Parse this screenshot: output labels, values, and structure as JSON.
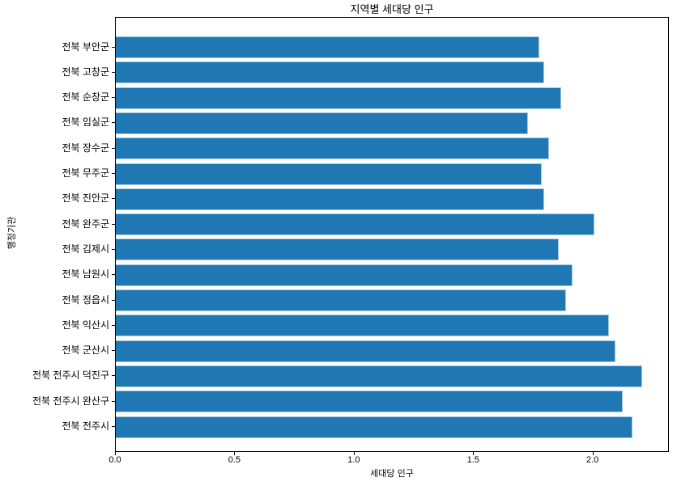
{
  "figure": {
    "background": "#ffffff"
  },
  "chart_data": {
    "type": "bar",
    "orientation": "horizontal",
    "title": "지역별 세대당 인구",
    "xlabel": "세대당 인구",
    "ylabel": "행정기관",
    "category_order": "top-to-bottom",
    "categories": [
      "전북 부안군",
      "전북 고창군",
      "전북 순창군",
      "전북 임실군",
      "전북 장수군",
      "전북 무주군",
      "전북 진안군",
      "전북 완주군",
      "전북 김제시",
      "전북 남원시",
      "전북 정읍시",
      "전북 익산시",
      "전북 군산시",
      "전북 전주시 덕진구",
      "전북 전주시 완산구",
      "전북 전주시"
    ],
    "values": [
      1.78,
      1.8,
      1.87,
      1.73,
      1.82,
      1.79,
      1.8,
      2.01,
      1.86,
      1.92,
      1.89,
      2.07,
      2.1,
      2.21,
      2.13,
      2.17
    ],
    "xlim": [
      0,
      2.32
    ],
    "xticks": {
      "values": [
        0.0,
        0.5,
        1.0,
        1.5,
        2.0
      ],
      "labels": [
        "0.0",
        "0.5",
        "1.0",
        "1.5",
        "2.0"
      ]
    },
    "grid": false,
    "legend": null,
    "bar_color": "#1f77b4",
    "bar_edge_color": "#a6cbe3",
    "spine_color": "#000000",
    "text_color": "#000000"
  }
}
